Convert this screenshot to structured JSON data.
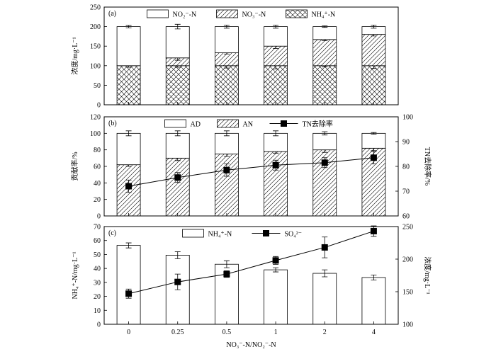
{
  "chart_data": [
    {
      "type": "bar",
      "stacked": true,
      "panel_label": "(a)",
      "ylabel": "浓度/mg·L⁻¹",
      "ylim": [
        0,
        250
      ],
      "yticks": [
        0,
        50,
        100,
        150,
        200,
        250
      ],
      "categories": [
        "0",
        "0.25",
        "0.5",
        "1",
        "2",
        "4"
      ],
      "series": [
        {
          "name": "NH₄⁺-N",
          "pattern": "crosshatch",
          "values": [
            100,
            100,
            100,
            100,
            100,
            100
          ],
          "errors": [
            4,
            4,
            6,
            8,
            3,
            7
          ]
        },
        {
          "name": "NO₃⁻-N",
          "pattern": "diagonal",
          "values": [
            0,
            20,
            33,
            50,
            67,
            80
          ],
          "errors": [
            0,
            6,
            3,
            6,
            3,
            4
          ]
        },
        {
          "name": "NO₂⁻-N",
          "pattern": "white",
          "values": [
            100,
            80,
            67,
            50,
            33,
            20
          ],
          "errors": [
            3,
            6,
            4,
            4,
            2,
            4
          ]
        }
      ],
      "legend_position": "top"
    },
    {
      "type": "bar",
      "stacked": true,
      "panel_label": "(b)",
      "ylabel": "贡献率/%",
      "ylim": [
        0,
        120
      ],
      "yticks": [
        0,
        20,
        40,
        60,
        80,
        100,
        120
      ],
      "y2label": "TN去除率/%",
      "y2lim": [
        60,
        100
      ],
      "y2ticks": [
        60,
        70,
        80,
        90,
        100
      ],
      "categories": [
        "0",
        "0.25",
        "0.5",
        "1",
        "2",
        "4"
      ],
      "series": [
        {
          "name": "AN",
          "pattern": "diagonal",
          "values": [
            62,
            70,
            75,
            78,
            80,
            82
          ],
          "errors": [
            2,
            3,
            3,
            2,
            3,
            3
          ]
        },
        {
          "name": "AD",
          "pattern": "white",
          "values": [
            38,
            30,
            25,
            22,
            20,
            18
          ],
          "errors": [
            3,
            3,
            3,
            3,
            2,
            1
          ]
        }
      ],
      "line_series": {
        "name": "TN去除率",
        "axis": "right",
        "values": [
          72,
          75.5,
          78.5,
          80.5,
          81.5,
          83.5
        ],
        "errors": [
          2.5,
          2,
          2.5,
          2,
          2,
          2.5
        ]
      },
      "legend_position": "top"
    },
    {
      "type": "bar",
      "panel_label": "(c)",
      "ylabel": "NH₄⁺-N/mg·L⁻¹",
      "ylim": [
        0,
        70
      ],
      "yticks": [
        0,
        10,
        20,
        30,
        40,
        50,
        60,
        70
      ],
      "y2label": "浓度/mg·L⁻¹",
      "y2lim": [
        100,
        250
      ],
      "y2ticks": [
        100,
        150,
        200,
        250
      ],
      "xlabel": "NO₃⁻-N/NO₂⁻-N",
      "categories": [
        "0",
        "0.25",
        "0.5",
        "1",
        "2",
        "4"
      ],
      "series": [
        {
          "name": "NH₄⁺-N",
          "pattern": "white",
          "values": [
            56.5,
            49.5,
            43,
            39,
            36.5,
            33.5
          ],
          "errors": [
            1.8,
            2.5,
            2.5,
            1.5,
            2.5,
            1.8
          ]
        }
      ],
      "line_series": {
        "name": "SO₄²⁻",
        "axis": "right",
        "values": [
          147,
          165,
          177,
          198,
          218,
          243
        ],
        "errors": [
          7,
          12,
          5,
          6,
          16,
          8
        ]
      },
      "legend_position": "top"
    }
  ]
}
